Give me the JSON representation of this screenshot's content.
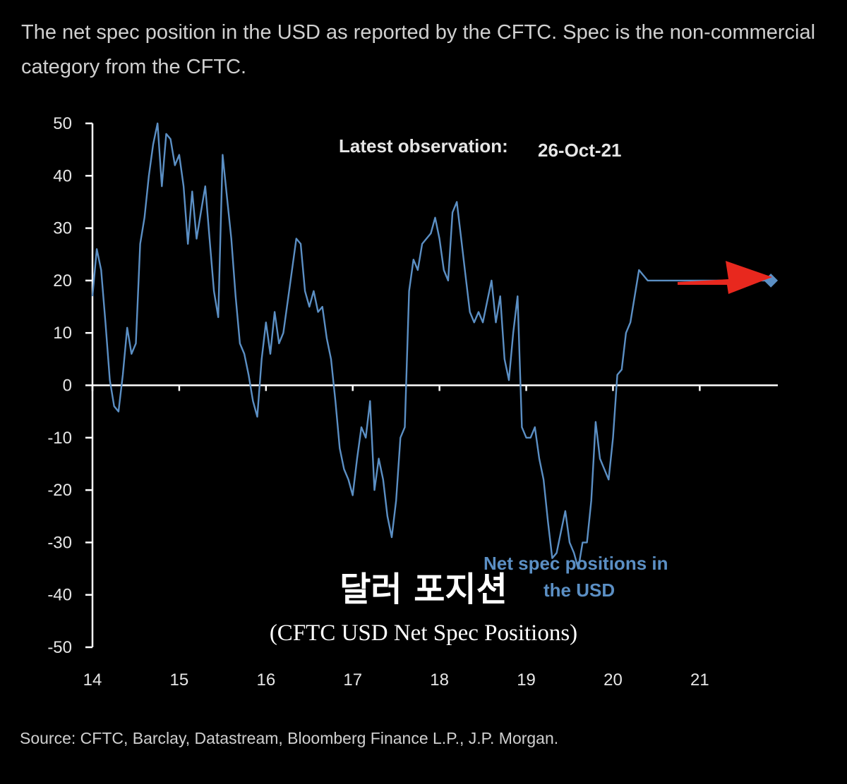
{
  "subtitle": "The net spec position in the USD as reported by the CFTC. Spec is the non-commercial category from the CFTC.",
  "source": "Source: CFTC, Barclay, Datastream, Bloomberg Finance L.P., J.P. Morgan.",
  "overlay": {
    "korean_title": "달러 포지션",
    "english_title": "(CFTC USD Net Spec Positions)"
  },
  "colors": {
    "line": "#5b8fc4",
    "arrow": "#e8281e",
    "axis": "#ffffff",
    "text": "#e6e6e6"
  },
  "chart_data": {
    "type": "line",
    "title": "",
    "xlabel": "",
    "ylabel": "",
    "ylim": [
      -50,
      50
    ],
    "yticks": [
      50,
      40,
      30,
      20,
      10,
      0,
      -10,
      -20,
      -30,
      -40,
      -50
    ],
    "xlim": [
      2014.0,
      2021.9
    ],
    "xticks": [
      "14",
      "15",
      "16",
      "17",
      "18",
      "19",
      "20",
      "21"
    ],
    "grid": false,
    "annotation": {
      "label": "Latest observation:",
      "date": "26-Oct-21"
    },
    "latest_marker": {
      "x": 2021.82,
      "y": 20
    },
    "arrow_icon": "red-arrow-icon",
    "series": [
      {
        "name": "Net spec positions in the USD",
        "x": [
          2014.0,
          2014.05,
          2014.1,
          2014.15,
          2014.2,
          2014.25,
          2014.3,
          2014.35,
          2014.4,
          2014.45,
          2014.5,
          2014.55,
          2014.6,
          2014.65,
          2014.7,
          2014.75,
          2014.8,
          2014.85,
          2014.9,
          2014.95,
          2015.0,
          2015.05,
          2015.1,
          2015.15,
          2015.2,
          2015.25,
          2015.3,
          2015.35,
          2015.4,
          2015.45,
          2015.5,
          2015.55,
          2015.6,
          2015.65,
          2015.7,
          2015.75,
          2015.8,
          2015.85,
          2015.9,
          2015.95,
          2016.0,
          2016.05,
          2016.1,
          2016.15,
          2016.2,
          2016.25,
          2016.3,
          2016.35,
          2016.4,
          2016.45,
          2016.5,
          2016.55,
          2016.6,
          2016.65,
          2016.7,
          2016.75,
          2016.8,
          2016.85,
          2016.9,
          2016.95,
          2017.0,
          2017.05,
          2017.1,
          2017.15,
          2017.2,
          2017.25,
          2017.3,
          2017.35,
          2017.4,
          2017.45,
          2017.5,
          2017.55,
          2017.6,
          2017.65,
          2017.7,
          2017.75,
          2017.8,
          2017.85,
          2017.9,
          2017.95,
          2018.0,
          2018.05,
          2018.1,
          2018.15,
          2018.2,
          2018.25,
          2018.3,
          2018.35,
          2018.4,
          2018.45,
          2018.5,
          2018.55,
          2018.6,
          2018.65,
          2018.7,
          2018.75,
          2018.8,
          2018.85,
          2018.9,
          2018.95,
          2019.0,
          2019.05,
          2019.1,
          2019.15,
          2019.2,
          2019.25,
          2019.3,
          2019.35,
          2019.4,
          2019.45,
          2019.5,
          2019.55,
          2019.6,
          2019.65,
          2019.7,
          2019.75,
          2019.8,
          2019.85,
          2019.9,
          2019.95,
          2020.0,
          2020.05,
          2020.1,
          2020.15,
          2020.2,
          2020.25,
          2020.3,
          2020.35,
          2020.4,
          2020.45,
          2020.5,
          2020.55,
          2020.6,
          2020.65,
          2020.7,
          2020.75,
          2020.8,
          2020.85,
          2020.9,
          2020.95,
          2021.0,
          2021.05,
          2021.1,
          2021.15,
          2021.2,
          2021.25,
          2021.3,
          2021.35,
          2021.4,
          2021.45,
          2021.5,
          2021.55,
          2021.6,
          2021.65,
          2021.7,
          2021.75,
          2021.8
        ],
        "values": [
          17,
          26,
          22,
          12,
          1,
          -4,
          -5,
          2,
          11,
          6,
          8,
          27,
          32,
          40,
          46,
          50,
          38,
          48,
          47,
          42,
          44,
          38,
          27,
          37,
          28,
          33,
          38,
          28,
          18,
          13,
          44,
          36,
          28,
          17,
          8,
          6,
          2,
          -3,
          -6,
          5,
          12,
          6,
          14,
          8,
          10,
          16,
          22,
          28,
          27,
          18,
          15,
          18,
          14,
          15,
          9,
          5,
          -3,
          -12,
          -16,
          -18,
          -21,
          -14,
          -8,
          -10,
          -3,
          -20,
          -14,
          -18,
          -25,
          -29,
          -22,
          -10,
          -8,
          18,
          24,
          22,
          27,
          28,
          29,
          32,
          28,
          22,
          20,
          33,
          35,
          28,
          21,
          14,
          12,
          14,
          12,
          16,
          20,
          12,
          17,
          5,
          1,
          10,
          17,
          -8,
          -10,
          -10,
          -8,
          -14,
          -18,
          -26,
          -33,
          -32,
          -28,
          -24,
          -30,
          -32,
          -35,
          -30,
          -30,
          -22,
          -7,
          -14,
          -16,
          -18,
          -10,
          2,
          3,
          10,
          12,
          17,
          22,
          21,
          20,
          20,
          20,
          20,
          20,
          20,
          20,
          20,
          20,
          20,
          20,
          20,
          20,
          20,
          20,
          20,
          20,
          20,
          20,
          20,
          20,
          20,
          20,
          20,
          20,
          20,
          20,
          20,
          20
        ]
      }
    ]
  }
}
